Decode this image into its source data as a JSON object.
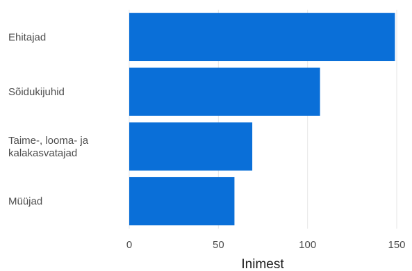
{
  "chart_data": {
    "type": "bar",
    "orientation": "horizontal",
    "categories": [
      [
        "Ehitajad"
      ],
      [
        "Sõidukijuhid"
      ],
      [
        "Taime-, looma- ja",
        "kalakasvatajad"
      ],
      [
        "Müüjad"
      ]
    ],
    "values": [
      149,
      107,
      69,
      59
    ],
    "xlim": [
      0,
      150
    ],
    "x_ticks": [
      0,
      50,
      100,
      150
    ],
    "xlabel": "Inimest",
    "ylabel": "",
    "title": "",
    "grid": true,
    "colors": {
      "bar": "#0a6fd8",
      "grid": "#e6e6e6",
      "text": "#4d4d4d"
    }
  }
}
